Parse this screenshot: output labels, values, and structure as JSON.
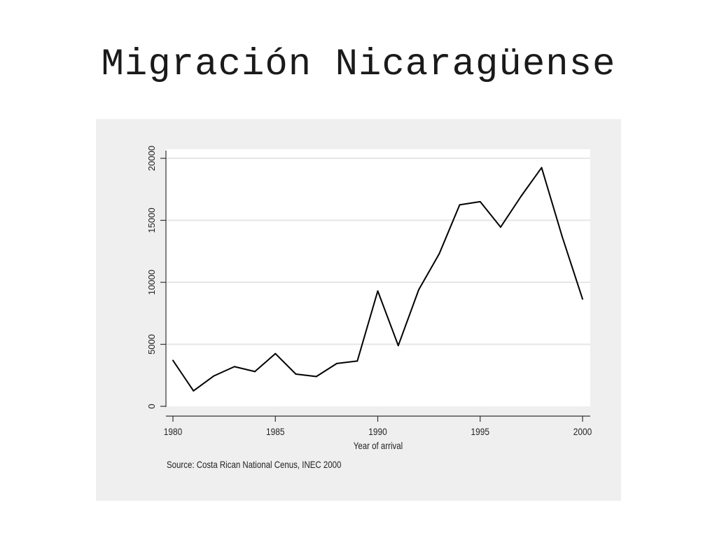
{
  "slide": {
    "title": "Migración Nicaragüense"
  },
  "chart_data": {
    "type": "line",
    "title": "",
    "xlabel": "Year of arrival",
    "ylabel": "",
    "note": "Source: Costa Rican National Cenus, INEC 2000",
    "xlim": [
      1980,
      2000
    ],
    "ylim": [
      0,
      20000
    ],
    "xticks": [
      1980,
      1985,
      1990,
      1995,
      2000
    ],
    "yticks": [
      0,
      5000,
      10000,
      15000,
      20000
    ],
    "grid": true,
    "colors": {
      "line": "#000000",
      "plot_bg": "#ffffff",
      "frame_bg": "#efefef",
      "grid": "#e6e6e6"
    },
    "series": [
      {
        "x": [
          1980,
          1981,
          1982,
          1983,
          1984,
          1985,
          1986,
          1987,
          1988,
          1989,
          1990,
          1991,
          1992,
          1993,
          1994,
          1995,
          1996,
          1997,
          1998,
          1999,
          2000
        ],
        "y": [
          3700,
          1250,
          2450,
          3200,
          2800,
          4250,
          2600,
          2400,
          3450,
          3650,
          9300,
          4900,
          9400,
          12300,
          16250,
          16500,
          14450,
          16950,
          19250,
          13700,
          8650
        ]
      }
    ]
  }
}
